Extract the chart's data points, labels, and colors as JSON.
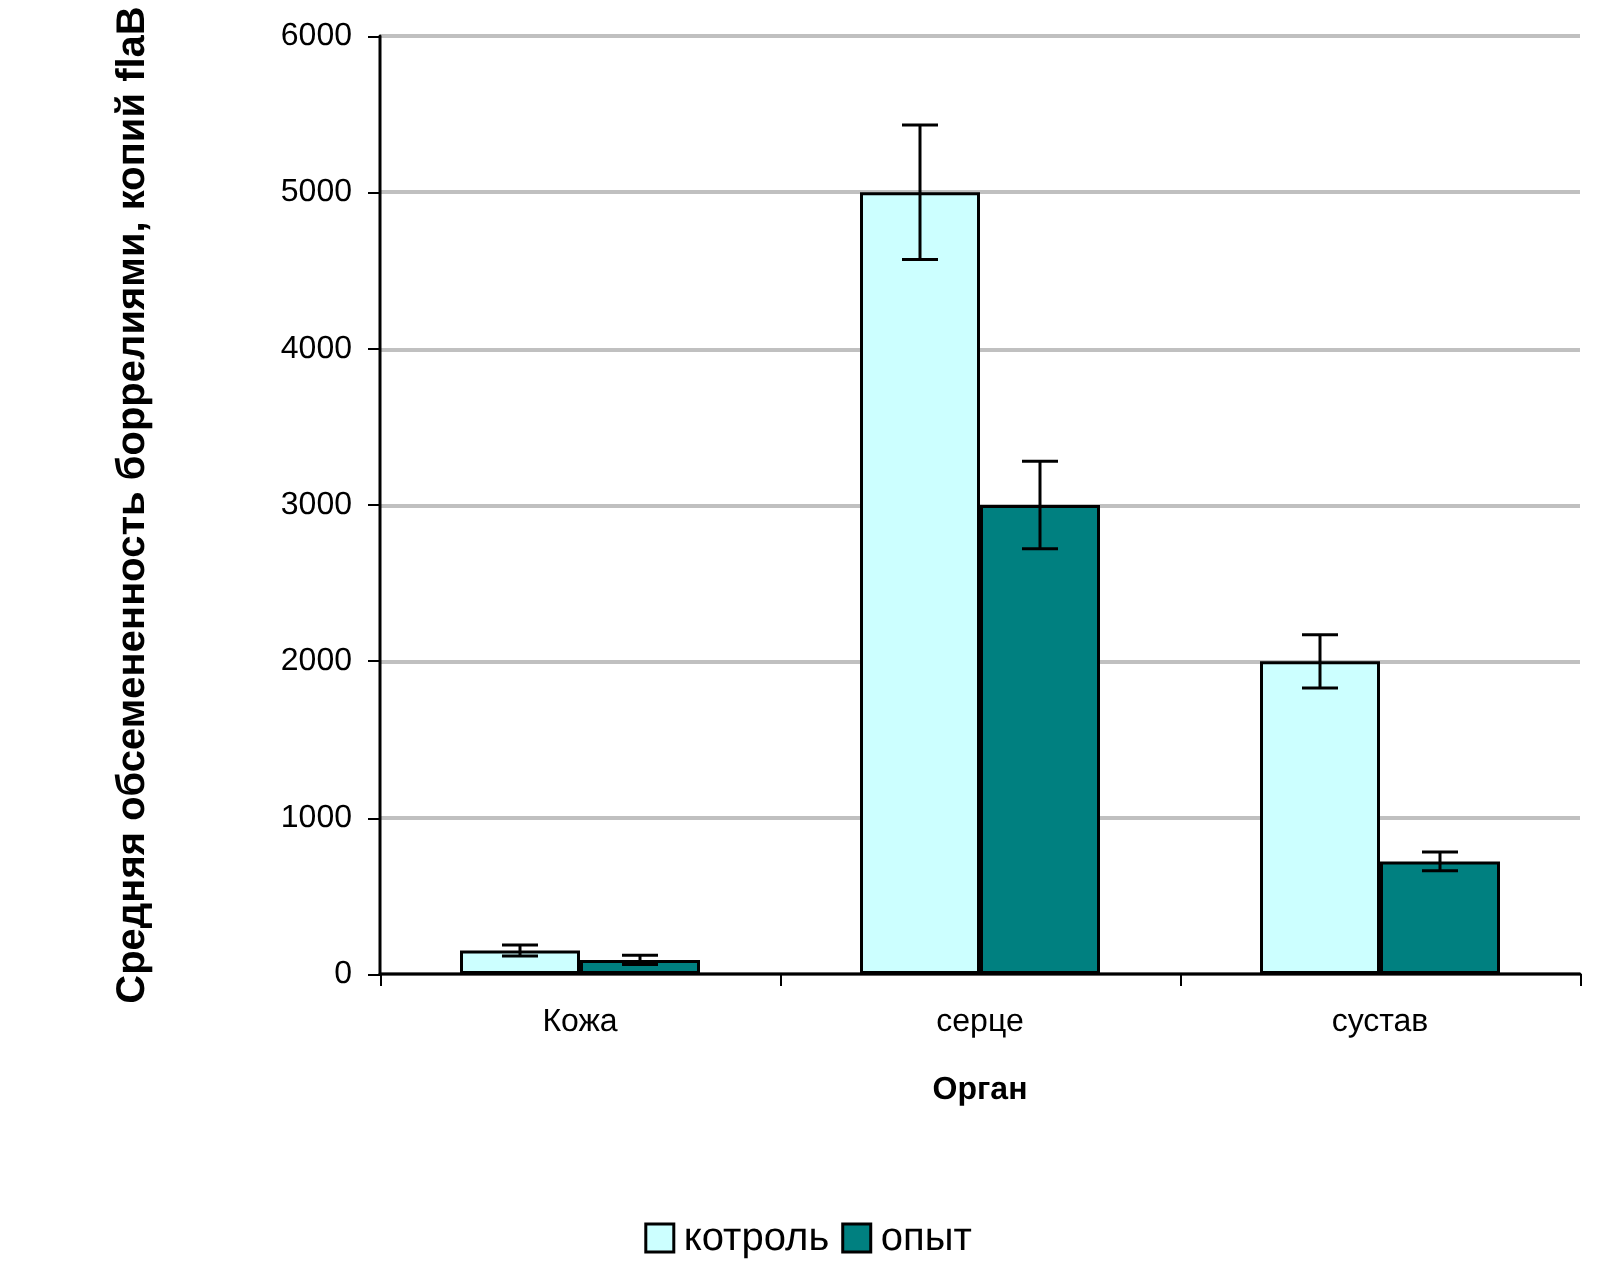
{
  "chart_data": {
    "type": "bar",
    "xlabel": "Орган",
    "ylabel": "Средняя обсемененность боррелиями, копий flaB",
    "categories": [
      "Кожа",
      "серце",
      "сустав"
    ],
    "series": [
      {
        "name": "котроль",
        "color": "#ccffff",
        "values": [
          150,
          5000,
          2000
        ],
        "errors": [
          35,
          430,
          170
        ]
      },
      {
        "name": "опыт",
        "color": "#008080",
        "values": [
          90,
          3000,
          720
        ],
        "errors": [
          30,
          280,
          60
        ]
      }
    ],
    "ylim": [
      0,
      6000
    ],
    "yticks": [
      0,
      1000,
      2000,
      3000,
      4000,
      5000,
      6000
    ],
    "grid": "y",
    "legend": "bottom"
  }
}
